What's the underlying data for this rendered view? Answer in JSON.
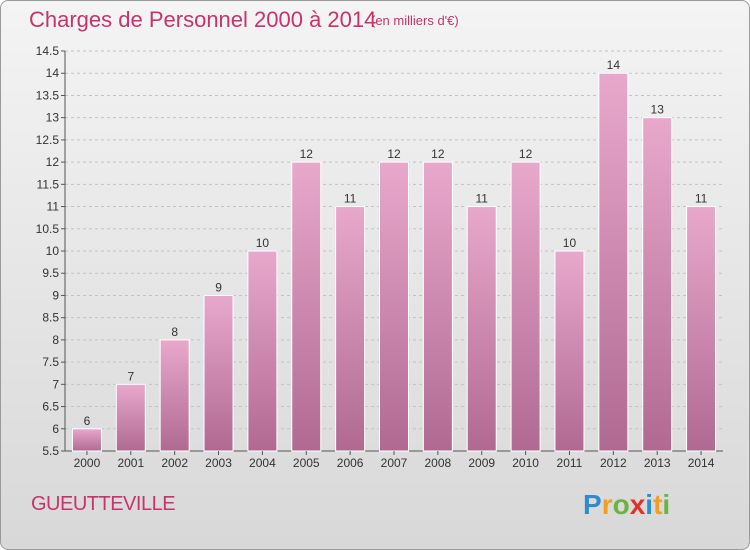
{
  "header": {
    "title": "Charges de Personnel 2000 à 2014",
    "unit": "(en milliers d'€)"
  },
  "commune": "GUEUTTEVILLE",
  "logo": {
    "letters": [
      "P",
      "r",
      "o",
      "x",
      "i",
      "t",
      "i"
    ]
  },
  "colors": {
    "title": "#c7336b",
    "bar_top": "#e8a8cc",
    "bar_bottom": "#b06a92",
    "bar_stroke": "#ffffff"
  },
  "chart_data": {
    "type": "bar",
    "title": "Charges de Personnel 2000 à 2014",
    "categories": [
      "2000",
      "2001",
      "2002",
      "2003",
      "2004",
      "2005",
      "2006",
      "2007",
      "2008",
      "2009",
      "2010",
      "2011",
      "2012",
      "2013",
      "2014"
    ],
    "values": [
      6,
      7,
      8,
      9,
      10,
      12,
      11,
      12,
      12,
      11,
      12,
      10,
      14,
      13,
      11
    ],
    "data_labels": [
      "6",
      "7",
      "8",
      "9",
      "10",
      "12",
      "11",
      "12",
      "12",
      "11",
      "12",
      "10",
      "14",
      "13",
      "11"
    ],
    "ylim": [
      5.5,
      14.5
    ],
    "yticks": [
      5.5,
      6,
      6.5,
      7,
      7.5,
      8,
      8.5,
      9,
      9.5,
      10,
      10.5,
      11,
      11.5,
      12,
      12.5,
      13,
      13.5,
      14,
      14.5
    ],
    "ytick_labels": [
      "5.5",
      "6",
      "6.5",
      "7",
      "7.5",
      "8",
      "8.5",
      "9",
      "9.5",
      "10",
      "10.5",
      "11",
      "11.5",
      "12",
      "12.5",
      "13",
      "13.5",
      "14",
      "14.5"
    ],
    "grid": true,
    "xlabel": "",
    "ylabel": ""
  }
}
